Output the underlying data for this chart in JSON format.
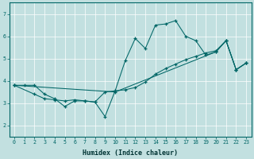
{
  "xlabel": "Humidex (Indice chaleur)",
  "background_color": "#c2e0e0",
  "line_color": "#006666",
  "grid_color": "#ffffff",
  "xlim": [
    -0.5,
    23.5
  ],
  "ylim": [
    1.5,
    7.5
  ],
  "xticks": [
    0,
    1,
    2,
    3,
    4,
    5,
    6,
    7,
    8,
    9,
    10,
    11,
    12,
    13,
    14,
    15,
    16,
    17,
    18,
    19,
    20,
    21,
    22,
    23
  ],
  "yticks": [
    2,
    3,
    4,
    5,
    6,
    7
  ],
  "line1_x": [
    0,
    1,
    2,
    3,
    4,
    5,
    6,
    7,
    8,
    9,
    10,
    11,
    12,
    13,
    14,
    15,
    16,
    17,
    18,
    19,
    20,
    21,
    22,
    23
  ],
  "line1_y": [
    3.8,
    3.8,
    3.8,
    3.4,
    3.2,
    2.85,
    3.1,
    3.1,
    3.05,
    2.4,
    3.55,
    4.9,
    5.9,
    5.45,
    6.5,
    6.55,
    6.7,
    6.0,
    5.8,
    5.15,
    5.3,
    5.8,
    4.5,
    4.8
  ],
  "line2_x": [
    0,
    2,
    3,
    4,
    5,
    6,
    7,
    8,
    9,
    10,
    11,
    12,
    13,
    14,
    15,
    16,
    17,
    18,
    19,
    20,
    21,
    22,
    23
  ],
  "line2_y": [
    3.8,
    3.4,
    3.2,
    3.15,
    3.1,
    3.15,
    3.1,
    3.05,
    3.5,
    3.55,
    3.6,
    3.7,
    3.95,
    4.3,
    4.55,
    4.75,
    4.95,
    5.1,
    5.25,
    5.35,
    5.8,
    4.5,
    4.8
  ],
  "line3_x": [
    0,
    10,
    20,
    21,
    22,
    23
  ],
  "line3_y": [
    3.8,
    3.5,
    5.3,
    5.8,
    4.5,
    4.8
  ]
}
